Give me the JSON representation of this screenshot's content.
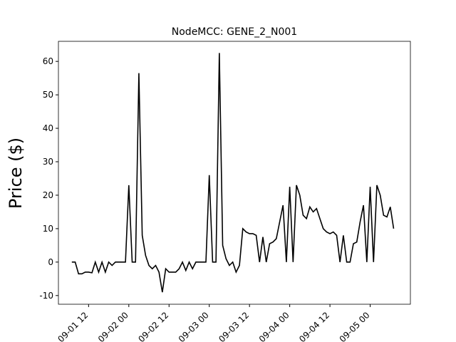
{
  "chart_data": {
    "type": "line",
    "title": "NodeMCC: GENE_2_N001",
    "y_label": "Price ($)",
    "x": [
      "09-01 07",
      "09-01 08",
      "09-01 09",
      "09-01 10",
      "09-01 11",
      "09-01 12",
      "09-01 13",
      "09-01 14",
      "09-01 15",
      "09-01 16",
      "09-01 17",
      "09-01 18",
      "09-01 19",
      "09-01 20",
      "09-01 21",
      "09-01 22",
      "09-01 23",
      "09-02 00",
      "09-02 01",
      "09-02 02",
      "09-02 03",
      "09-02 04",
      "09-02 05",
      "09-02 06",
      "09-02 07",
      "09-02 08",
      "09-02 09",
      "09-02 10",
      "09-02 11",
      "09-02 12",
      "09-02 13",
      "09-02 14",
      "09-02 15",
      "09-02 16",
      "09-02 17",
      "09-02 18",
      "09-02 19",
      "09-02 20",
      "09-02 21",
      "09-02 22",
      "09-02 23",
      "09-03 00",
      "09-03 01",
      "09-03 02",
      "09-03 03",
      "09-03 04",
      "09-03 05",
      "09-03 06",
      "09-03 07",
      "09-03 08",
      "09-03 09",
      "09-03 10",
      "09-03 11",
      "09-03 12",
      "09-03 13",
      "09-03 14",
      "09-03 15",
      "09-03 16",
      "09-03 17",
      "09-03 18",
      "09-03 19",
      "09-03 20",
      "09-03 21",
      "09-03 22",
      "09-03 23",
      "09-04 00",
      "09-04 01",
      "09-04 02",
      "09-04 03",
      "09-04 04",
      "09-04 05",
      "09-04 06",
      "09-04 07",
      "09-04 08",
      "09-04 09",
      "09-04 10",
      "09-04 11",
      "09-04 12",
      "09-04 13",
      "09-04 14",
      "09-04 15",
      "09-04 16",
      "09-04 17",
      "09-04 18",
      "09-04 19",
      "09-04 20",
      "09-04 21",
      "09-04 22",
      "09-04 23",
      "09-05 00",
      "09-05 01",
      "09-05 02",
      "09-05 03",
      "09-05 04",
      "09-05 05",
      "09-05 06",
      "09-05 07"
    ],
    "series": [
      {
        "name": "Price",
        "color": "#000000",
        "values": [
          0,
          0,
          -3.5,
          -3.5,
          -3,
          -3,
          -3.2,
          0,
          -3,
          0,
          -3,
          0,
          -1,
          0,
          0,
          0,
          0,
          23,
          0,
          0,
          56.5,
          8,
          2,
          -1,
          -2,
          -1,
          -3,
          -9,
          -2,
          -3,
          -3,
          -3,
          -2,
          0,
          -2.5,
          0,
          -2,
          0,
          0,
          0,
          0,
          26,
          0,
          0,
          62.5,
          5,
          1,
          -1,
          0,
          -3,
          -1,
          10,
          9,
          8.5,
          8.5,
          8,
          0,
          7.5,
          0,
          5.5,
          6,
          7,
          12,
          17,
          0,
          22.5,
          0,
          23,
          20,
          14,
          13,
          16.5,
          15,
          16,
          13,
          10,
          9,
          8.5,
          9,
          8,
          0,
          8,
          0,
          0,
          5.5,
          6,
          12,
          17,
          0,
          22.5,
          0,
          23,
          20,
          14,
          13.5,
          16.5,
          10
        ]
      }
    ],
    "xlim": [
      "09-01 03",
      "09-05 12"
    ],
    "xticks": [
      "09-01 12",
      "09-02 00",
      "09-02 12",
      "09-03 00",
      "09-03 12",
      "09-04 00",
      "09-04 12",
      "09-05 00"
    ],
    "ylim": [
      -12.6,
      66
    ],
    "yticks": [
      -10,
      0,
      10,
      20,
      30,
      40,
      50,
      60
    ]
  }
}
